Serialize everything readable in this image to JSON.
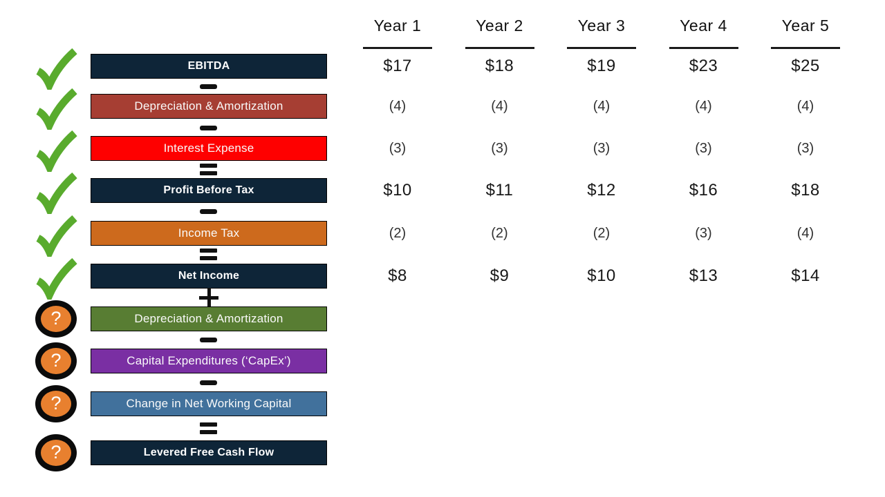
{
  "icons": {
    "check": "check-icon",
    "question": "question-icon",
    "question_mark": "?"
  },
  "colors": {
    "navy": "#0e2538",
    "brick_red": "#a63e33",
    "bright_red": "#fe0000",
    "orange": "#cd6a1d",
    "green_bar": "#587d33",
    "purple": "#7a2fa3",
    "steel_blue": "#41719c",
    "check_green": "#59ab2d",
    "badge_orange": "#e8802f",
    "operator_black": "#111111"
  },
  "years": [
    "Year 1",
    "Year 2",
    "Year 3",
    "Year 4",
    "Year 5"
  ],
  "rows": [
    {
      "label": "EBITDA",
      "icon": "check",
      "operator": null,
      "color_key": "navy",
      "bold": true,
      "values": [
        "$17",
        "$18",
        "$19",
        "$23",
        "$25"
      ]
    },
    {
      "label": "Depreciation & Amortization",
      "icon": "check",
      "operator": "−",
      "color_key": "brick_red",
      "bold": false,
      "values": [
        "(4)",
        "(4)",
        "(4)",
        "(4)",
        "(4)"
      ]
    },
    {
      "label": "Interest Expense",
      "icon": "check",
      "operator": "−",
      "color_key": "bright_red",
      "bold": false,
      "values": [
        "(3)",
        "(3)",
        "(3)",
        "(3)",
        "(3)"
      ]
    },
    {
      "label": "Profit Before Tax",
      "icon": "check",
      "operator": "=",
      "color_key": "navy",
      "bold": true,
      "values": [
        "$10",
        "$11",
        "$12",
        "$16",
        "$18"
      ]
    },
    {
      "label": "Income Tax",
      "icon": "check",
      "operator": "−",
      "color_key": "orange",
      "bold": false,
      "values": [
        "(2)",
        "(2)",
        "(2)",
        "(3)",
        "(4)"
      ]
    },
    {
      "label": "Net Income",
      "icon": "check",
      "operator": "=",
      "color_key": "navy",
      "bold": true,
      "values": [
        "$8",
        "$9",
        "$10",
        "$13",
        "$14"
      ]
    },
    {
      "label": "Depreciation & Amortization",
      "icon": "question",
      "operator": "+",
      "color_key": "green_bar",
      "bold": false,
      "values": null
    },
    {
      "label": "Capital Expenditures (‘CapEx’)",
      "icon": "question",
      "operator": "−",
      "color_key": "purple",
      "bold": false,
      "values": null
    },
    {
      "label": "Change in Net Working Capital",
      "icon": "question",
      "operator": "−",
      "color_key": "steel_blue",
      "bold": false,
      "values": null
    },
    {
      "label": "Levered Free Cash Flow",
      "icon": "question",
      "operator": "=",
      "color_key": "navy",
      "bold": true,
      "values": null
    }
  ]
}
